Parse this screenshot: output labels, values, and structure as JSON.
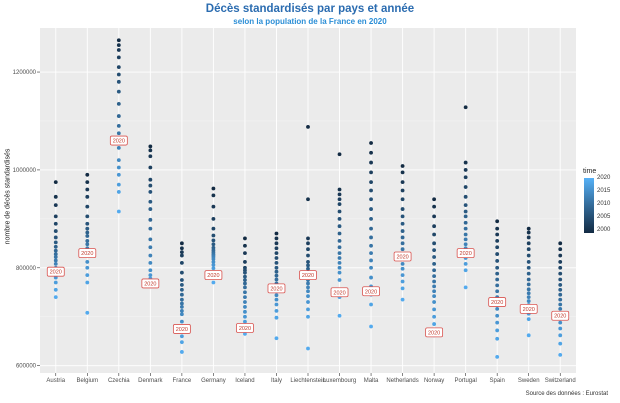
{
  "chart_data": {
    "type": "scatter",
    "title": "Décès standardisés par pays et année",
    "subtitle": "selon la population de la France en 2020",
    "ylabel": "nombre de décès standardisés",
    "xlabel": "",
    "caption": "Source des données : Eurostat",
    "ylim": [
      585000,
      1290000
    ],
    "y_ticks": [
      600000,
      800000,
      1000000,
      1200000
    ],
    "y_tick_labels": [
      "600000",
      "800000",
      "1000000",
      "1200000"
    ],
    "grid": true,
    "legend": {
      "title": "time",
      "placement": "right",
      "ticks": [
        "2020",
        "2015",
        "2010",
        "2005",
        "2000"
      ],
      "tick_values": [
        2020,
        2015,
        2010,
        2005,
        2000
      ],
      "color_low": "#132b43",
      "color_high": "#56b1f7"
    },
    "highlight_label": "2020",
    "categories": [
      "Austria",
      "Belgium",
      "Czechia",
      "Denmark",
      "France",
      "Germany",
      "Iceland",
      "Italy",
      "Liechtenstein",
      "Luxembourg",
      "Malta",
      "Netherlands",
      "Norway",
      "Portugal",
      "Spain",
      "Sweden",
      "Switzerland"
    ],
    "series": [
      {
        "category": "Austria",
        "values_2000_to_2020": [
          975000,
          945000,
          928000,
          905000,
          890000,
          875000,
          862000,
          852000,
          843000,
          835000,
          828000,
          822000,
          815000,
          808000,
          800000,
          790000,
          780000,
          770000,
          755000,
          740000,
          792000
        ]
      },
      {
        "category": "Belgium",
        "values_2000_to_2020": [
          990000,
          975000,
          960000,
          945000,
          925000,
          905000,
          890000,
          880000,
          872000,
          865000,
          855000,
          848000,
          840000,
          835000,
          825000,
          812000,
          800000,
          785000,
          770000,
          708000,
          830000
        ]
      },
      {
        "category": "Czechia",
        "values_2000_to_2020": [
          1265000,
          1255000,
          1245000,
          1230000,
          1210000,
          1195000,
          1180000,
          1160000,
          1135000,
          1110000,
          1090000,
          1075000,
          1060000,
          1045000,
          1020000,
          1005000,
          990000,
          970000,
          955000,
          915000,
          1060000
        ]
      },
      {
        "category": "Denmark",
        "values_2000_to_2020": [
          1048000,
          1040000,
          1028000,
          1005000,
          980000,
          968000,
          955000,
          935000,
          920000,
          898000,
          880000,
          858000,
          842000,
          825000,
          810000,
          795000,
          785000,
          778000,
          772000,
          762000,
          768000
        ]
      },
      {
        "category": "France",
        "values_2000_to_2020": [
          850000,
          840000,
          832000,
          825000,
          810000,
          790000,
          775000,
          765000,
          755000,
          745000,
          735000,
          727000,
          720000,
          712000,
          705000,
          690000,
          675000,
          660000,
          648000,
          628000,
          675000
        ]
      },
      {
        "category": "Germany",
        "values_2000_to_2020": [
          962000,
          948000,
          925000,
          900000,
          880000,
          866000,
          856000,
          848000,
          841000,
          836000,
          832000,
          828000,
          825000,
          822000,
          818000,
          812000,
          806000,
          799000,
          790000,
          770000,
          785000
        ]
      },
      {
        "category": "Iceland",
        "values_2000_to_2020": [
          860000,
          845000,
          830000,
          812000,
          800000,
          795000,
          790000,
          782000,
          775000,
          768000,
          760000,
          750000,
          740000,
          730000,
          720000,
          710000,
          700000,
          690000,
          680000,
          665000,
          677000
        ]
      },
      {
        "category": "Italy",
        "values_2000_to_2020": [
          870000,
          860000,
          850000,
          840000,
          830000,
          820000,
          810000,
          800000,
          792000,
          784000,
          776000,
          768000,
          760000,
          752000,
          744000,
          735000,
          725000,
          712000,
          698000,
          656000,
          758000
        ]
      },
      {
        "category": "Liechtenstein",
        "values_2000_to_2020": [
          1088000,
          940000,
          860000,
          850000,
          838000,
          825000,
          812000,
          805000,
          798000,
          790000,
          782000,
          775000,
          768000,
          760000,
          752000,
          742000,
          730000,
          715000,
          700000,
          635000,
          785000
        ]
      },
      {
        "category": "Luxembourg",
        "values_2000_to_2020": [
          1032000,
          960000,
          950000,
          940000,
          930000,
          915000,
          900000,
          885000,
          870000,
          855000,
          842000,
          830000,
          820000,
          810000,
          800000,
          790000,
          775000,
          755000,
          740000,
          702000,
          750000
        ]
      },
      {
        "category": "Malta",
        "values_2000_to_2020": [
          1055000,
          1035000,
          1015000,
          995000,
          975000,
          958000,
          940000,
          920000,
          900000,
          880000,
          862000,
          845000,
          830000,
          815000,
          800000,
          780000,
          762000,
          745000,
          725000,
          680000,
          752000
        ]
      },
      {
        "category": "Netherlands",
        "values_2000_to_2020": [
          1008000,
          995000,
          975000,
          958000,
          940000,
          920000,
          905000,
          890000,
          875000,
          862000,
          850000,
          838000,
          828000,
          818000,
          808000,
          798000,
          785000,
          772000,
          758000,
          735000,
          823000
        ]
      },
      {
        "category": "Norway",
        "values_2000_to_2020": [
          940000,
          925000,
          905000,
          885000,
          868000,
          850000,
          836000,
          822000,
          808000,
          795000,
          783000,
          772000,
          762000,
          752000,
          742000,
          730000,
          715000,
          700000,
          685000,
          662000,
          668000
        ]
      },
      {
        "category": "Portugal",
        "values_2000_to_2020": [
          1128000,
          1015000,
          1000000,
          985000,
          965000,
          945000,
          928000,
          915000,
          905000,
          892000,
          880000,
          868000,
          858000,
          848000,
          840000,
          830000,
          820000,
          808000,
          795000,
          760000,
          830000
        ]
      },
      {
        "category": "Spain",
        "values_2000_to_2020": [
          895000,
          880000,
          868000,
          855000,
          842000,
          828000,
          814000,
          800000,
          788000,
          776000,
          764000,
          752000,
          740000,
          728000,
          716000,
          702000,
          688000,
          672000,
          655000,
          618000,
          730000
        ]
      },
      {
        "category": "Sweden",
        "values_2000_to_2020": [
          880000,
          872000,
          862000,
          850000,
          838000,
          825000,
          812000,
          800000,
          788000,
          776000,
          766000,
          756000,
          748000,
          740000,
          732000,
          724000,
          716000,
          706000,
          695000,
          662000,
          716000
        ]
      },
      {
        "category": "Switzerland",
        "values_2000_to_2020": [
          850000,
          838000,
          825000,
          812000,
          800000,
          788000,
          776000,
          765000,
          755000,
          745000,
          735000,
          725000,
          716000,
          707000,
          698000,
          688000,
          676000,
          662000,
          645000,
          622000,
          702000
        ]
      }
    ]
  }
}
